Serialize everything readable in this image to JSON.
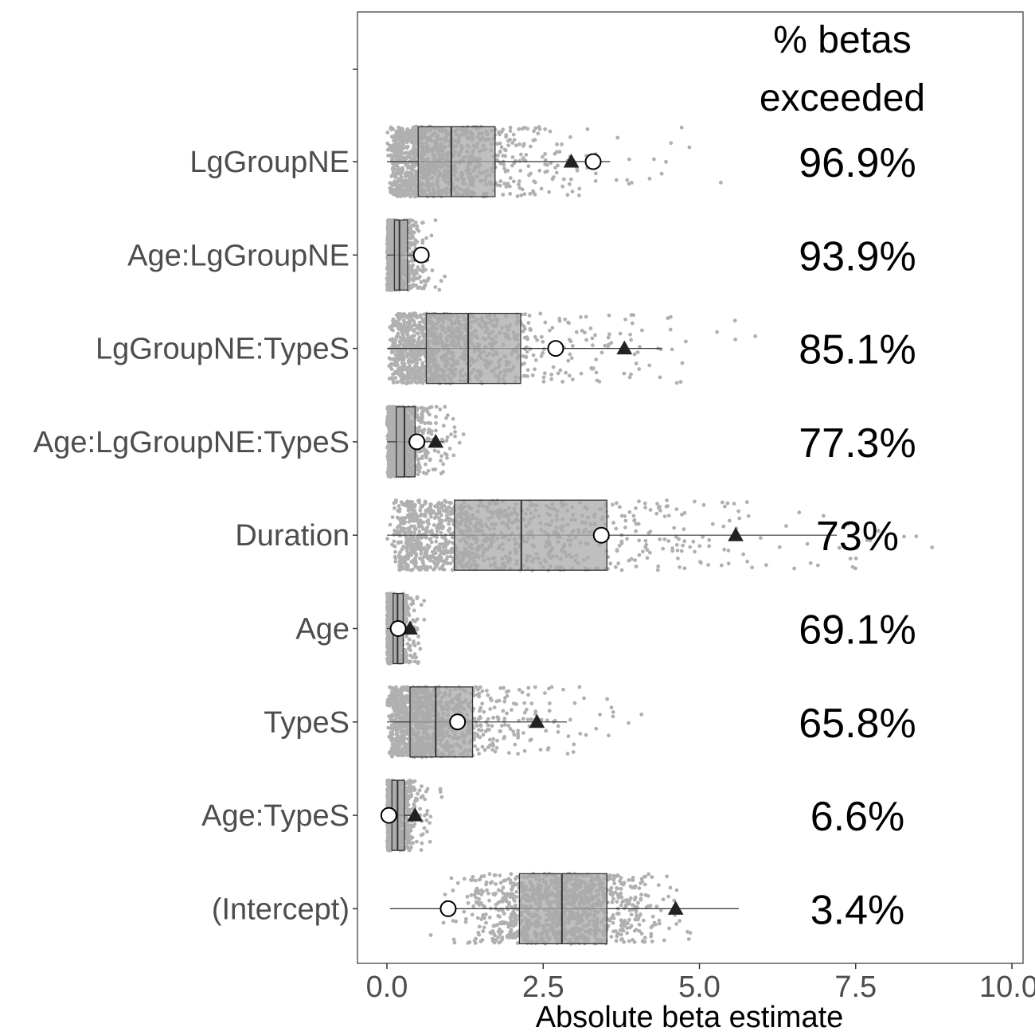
{
  "chart_data": {
    "type": "boxplot",
    "xlabel": "Absolute beta estimate",
    "xlim": [
      0,
      10
    ],
    "xticks": [
      0,
      2.5,
      5,
      7.5,
      10
    ],
    "xtick_labels": [
      "0.0",
      "2.5",
      "5.0",
      "7.5",
      "10.0"
    ],
    "header_lines": [
      "% betas",
      "exceeded"
    ],
    "grid": false,
    "colors": {
      "jitter": "#b0b0b0",
      "box_fill": "#a9a9a9",
      "box_line": "#333333",
      "triangle": "#222222",
      "circle_fill": "#ffffff",
      "circle_stroke": "#000000"
    },
    "categories": [
      {
        "label": "LgGroupNE",
        "pct": "96.9%",
        "box": {
          "whisker_low": 0.0,
          "q1": 0.5,
          "median": 1.03,
          "q3": 1.73,
          "whisker_high": 3.57
        },
        "triangle": 2.95,
        "circle": 3.3,
        "jitter_max": 7.0,
        "jitter_center": 1.2
      },
      {
        "label": "Age:LgGroupNE",
        "pct": "93.9%",
        "box": {
          "whisker_low": 0.0,
          "q1": 0.12,
          "median": 0.2,
          "q3": 0.33,
          "whisker_high": 0.58
        },
        "triangle": 0.55,
        "circle": 0.55,
        "jitter_max": 1.15,
        "jitter_center": 0.25
      },
      {
        "label": "LgGroupNE:TypeS",
        "pct": "85.1%",
        "box": {
          "whisker_low": 0.0,
          "q1": 0.63,
          "median": 1.3,
          "q3": 2.14,
          "whisker_high": 4.4
        },
        "triangle": 3.8,
        "circle": 2.7,
        "jitter_max": 6.2,
        "jitter_center": 1.5
      },
      {
        "label": "Age:LgGroupNE:TypeS",
        "pct": "77.3%",
        "box": {
          "whisker_low": 0.0,
          "q1": 0.15,
          "median": 0.28,
          "q3": 0.45,
          "whisker_high": 0.9
        },
        "triangle": 0.78,
        "circle": 0.48,
        "jitter_max": 1.45,
        "jitter_center": 0.35
      },
      {
        "label": "Duration",
        "pct": "73%",
        "box": {
          "whisker_low": 0.0,
          "q1": 1.08,
          "median": 2.15,
          "q3": 3.52,
          "whisker_high": 7.2
        },
        "triangle": 5.58,
        "circle": 3.43,
        "jitter_max": 9.6,
        "jitter_center": 2.5
      },
      {
        "label": "Age",
        "pct": "69.1%",
        "box": {
          "whisker_low": 0.0,
          "q1": 0.1,
          "median": 0.17,
          "q3": 0.26,
          "whisker_high": 0.45
        },
        "triangle": 0.37,
        "circle": 0.18,
        "jitter_max": 1.2,
        "jitter_center": 0.2
      },
      {
        "label": "TypeS",
        "pct": "65.8%",
        "box": {
          "whisker_low": 0.0,
          "q1": 0.37,
          "median": 0.78,
          "q3": 1.37,
          "whisker_high": 2.88
        },
        "triangle": 2.4,
        "circle": 1.13,
        "jitter_max": 4.9,
        "jitter_center": 0.9
      },
      {
        "label": "Age:TypeS",
        "pct": "6.6%",
        "box": {
          "whisker_low": 0.0,
          "q1": 0.08,
          "median": 0.17,
          "q3": 0.28,
          "whisker_high": 0.52
        },
        "triangle": 0.45,
        "circle": 0.03,
        "jitter_max": 1.25,
        "jitter_center": 0.2
      },
      {
        "label": "(Intercept)",
        "pct": "3.4%",
        "box": {
          "whisker_low": 0.05,
          "q1": 2.12,
          "median": 2.8,
          "q3": 3.52,
          "whisker_high": 5.63
        },
        "triangle": 4.62,
        "circle": 0.98,
        "jitter_max": 8.55,
        "jitter_center": 2.8
      }
    ]
  }
}
